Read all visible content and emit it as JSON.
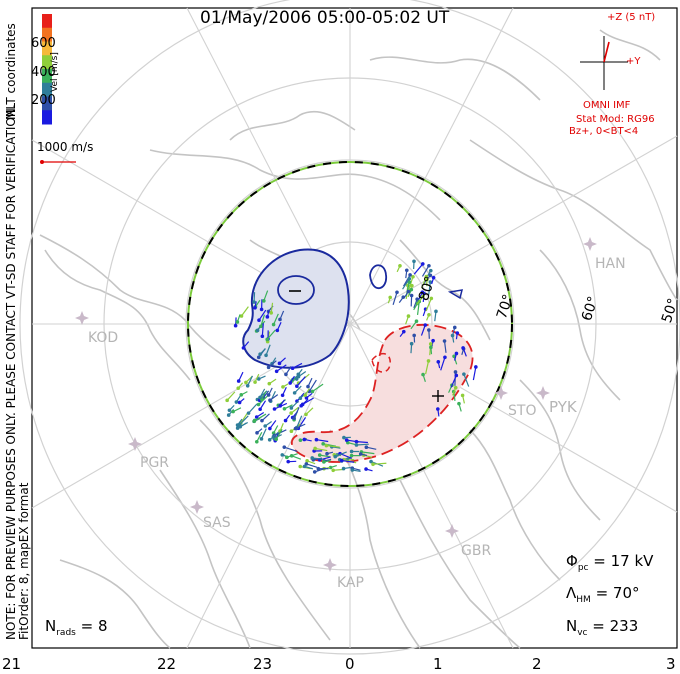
{
  "title": "01/May/2006 05:00-05:02 UT",
  "colorbar": {
    "ticks": [
      "600",
      "400",
      "200"
    ],
    "label": "Vel [m/s]",
    "colors": [
      "#e8201a",
      "#f37321",
      "#f5b93a",
      "#8fce3a",
      "#3bb15a",
      "#2f7e9a",
      "#2e4fa8",
      "#1a1ae0"
    ]
  },
  "side_labels": {
    "coords": "MLT coordinates",
    "note": "NOTE: FOR PREVIEW PURPOSES ONLY. PLEASE CONTACT VT-SD STAFF FOR VERIFICATION.",
    "fit": "FitOrder: 8, mapEX format"
  },
  "scale_vector": "1000 m/s",
  "imf": {
    "z_label": "+Z (5 nT)",
    "y_label": "+Y",
    "source": "OMNI IMF",
    "model": "Stat Mod: RG96",
    "condition": "Bz+, 0<BT<4"
  },
  "latitudes": [
    "80°",
    "70°",
    "60°",
    "50°"
  ],
  "radars": [
    "HAN",
    "KOD",
    "STO",
    "PYK",
    "PGR",
    "SAS",
    "GBR",
    "KAP"
  ],
  "mlt_ticks": [
    "21",
    "22",
    "23",
    "0",
    "1",
    "2",
    "3"
  ],
  "stats": {
    "phi_sym": "Φ",
    "phi_sub": "pc",
    "phi_val": " = 17 kV",
    "lam_sym": "Λ",
    "lam_sub": "HM",
    "lam_val": " = 70°",
    "nvc_sym": "N",
    "nvc_sub": "vc",
    "nvc_val": " = 233",
    "nrads_sym": "N",
    "nrads_sub": "rads",
    "nrads_val": " = 8"
  },
  "colors": {
    "coast": "#c4c4c4",
    "grid": "#d2d2d2",
    "cell_neg_line": "#1a2a9e",
    "cell_neg_fill": "#dde1ef",
    "cell_pos_line": "#dd2222",
    "cell_pos_fill": "#f7dede",
    "boundary_green": "#7ccb3c"
  }
}
